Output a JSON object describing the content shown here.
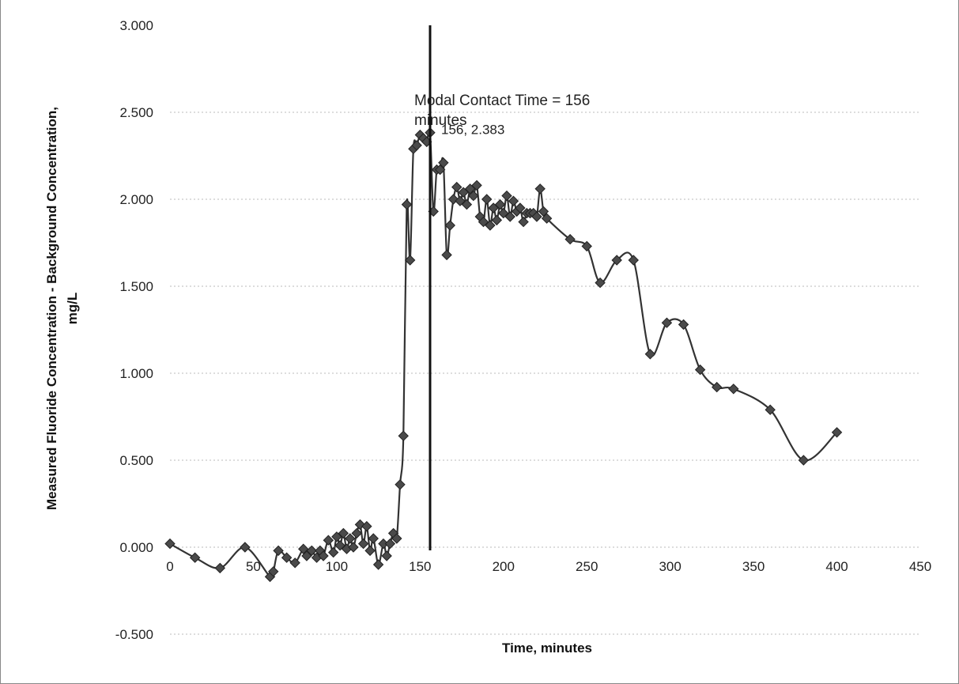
{
  "chart_data": {
    "type": "scatter",
    "title": "",
    "xlabel": "Time, minutes",
    "ylabel": [
      "Measured Fluoride Concentration - Background Concentration,",
      "mg/L"
    ],
    "xlim": [
      0,
      450
    ],
    "ylim": [
      -0.5,
      3.0
    ],
    "x_ticks": [
      0,
      50,
      100,
      150,
      200,
      250,
      300,
      350,
      400,
      450
    ],
    "x_tick_labels": [
      "0",
      "50",
      "100",
      "150",
      "200",
      "250",
      "300",
      "350",
      "400",
      "450"
    ],
    "y_ticks": [
      3.0,
      2.5,
      2.0,
      1.5,
      1.0,
      0.5,
      0.0,
      -0.5
    ],
    "y_tick_labels": [
      "3.000",
      "2.500",
      "2.000",
      "1.500",
      "1.000",
      "0.500",
      "0.000",
      "-0.500"
    ],
    "grid": true,
    "line_style": "smooth-line-with-markers",
    "marker": "diamond",
    "series_color": "#333333",
    "vertical_line": {
      "x": 156,
      "label_lines": [
        "Modal Contact Time = 156",
        "minutes"
      ]
    },
    "peak_label": {
      "x": 156,
      "y": 2.383,
      "text": "156, 2.383"
    },
    "series": [
      {
        "x": [
          0,
          15,
          30,
          45,
          60,
          62,
          65,
          70,
          75,
          80,
          82,
          85,
          88,
          90,
          92,
          95,
          98,
          100,
          102,
          104,
          106,
          108,
          110,
          112,
          114,
          116,
          118,
          120,
          122,
          125,
          128,
          130,
          132,
          134,
          136,
          138,
          140,
          142,
          144,
          146,
          148,
          150,
          152,
          154,
          156,
          158,
          160,
          162,
          164,
          166,
          168,
          170,
          172,
          174,
          176,
          178,
          180,
          182,
          184,
          186,
          188,
          190,
          192,
          194,
          196,
          198,
          200,
          202,
          204,
          206,
          208,
          210,
          212,
          214,
          216,
          218,
          220,
          222,
          224,
          226,
          240,
          250,
          258,
          268,
          278,
          288,
          298,
          308,
          318,
          328,
          338,
          360,
          380,
          400
        ],
        "y": [
          0.02,
          -0.06,
          -0.12,
          0.0,
          -0.17,
          -0.14,
          -0.02,
          -0.06,
          -0.09,
          -0.01,
          -0.05,
          -0.02,
          -0.06,
          -0.02,
          -0.05,
          0.04,
          -0.03,
          0.06,
          0.01,
          0.08,
          -0.01,
          0.05,
          0.0,
          0.08,
          0.13,
          0.02,
          0.12,
          -0.02,
          0.05,
          -0.1,
          0.02,
          -0.05,
          0.02,
          0.08,
          0.05,
          0.36,
          0.64,
          1.97,
          1.65,
          2.29,
          2.31,
          2.37,
          2.35,
          2.33,
          2.383,
          1.93,
          2.17,
          2.17,
          2.21,
          1.68,
          1.85,
          2.0,
          2.07,
          1.99,
          2.04,
          1.97,
          2.06,
          2.02,
          2.08,
          1.9,
          1.87,
          2.0,
          1.85,
          1.95,
          1.88,
          1.97,
          1.92,
          2.02,
          1.9,
          1.99,
          1.93,
          1.95,
          1.87,
          1.92,
          1.92,
          1.92,
          1.9,
          2.06,
          1.93,
          1.89,
          1.77,
          1.73,
          1.52,
          1.65,
          1.65,
          1.11,
          1.29,
          1.28,
          1.02,
          0.92,
          0.91,
          0.79,
          0.5,
          0.66
        ]
      }
    ]
  }
}
